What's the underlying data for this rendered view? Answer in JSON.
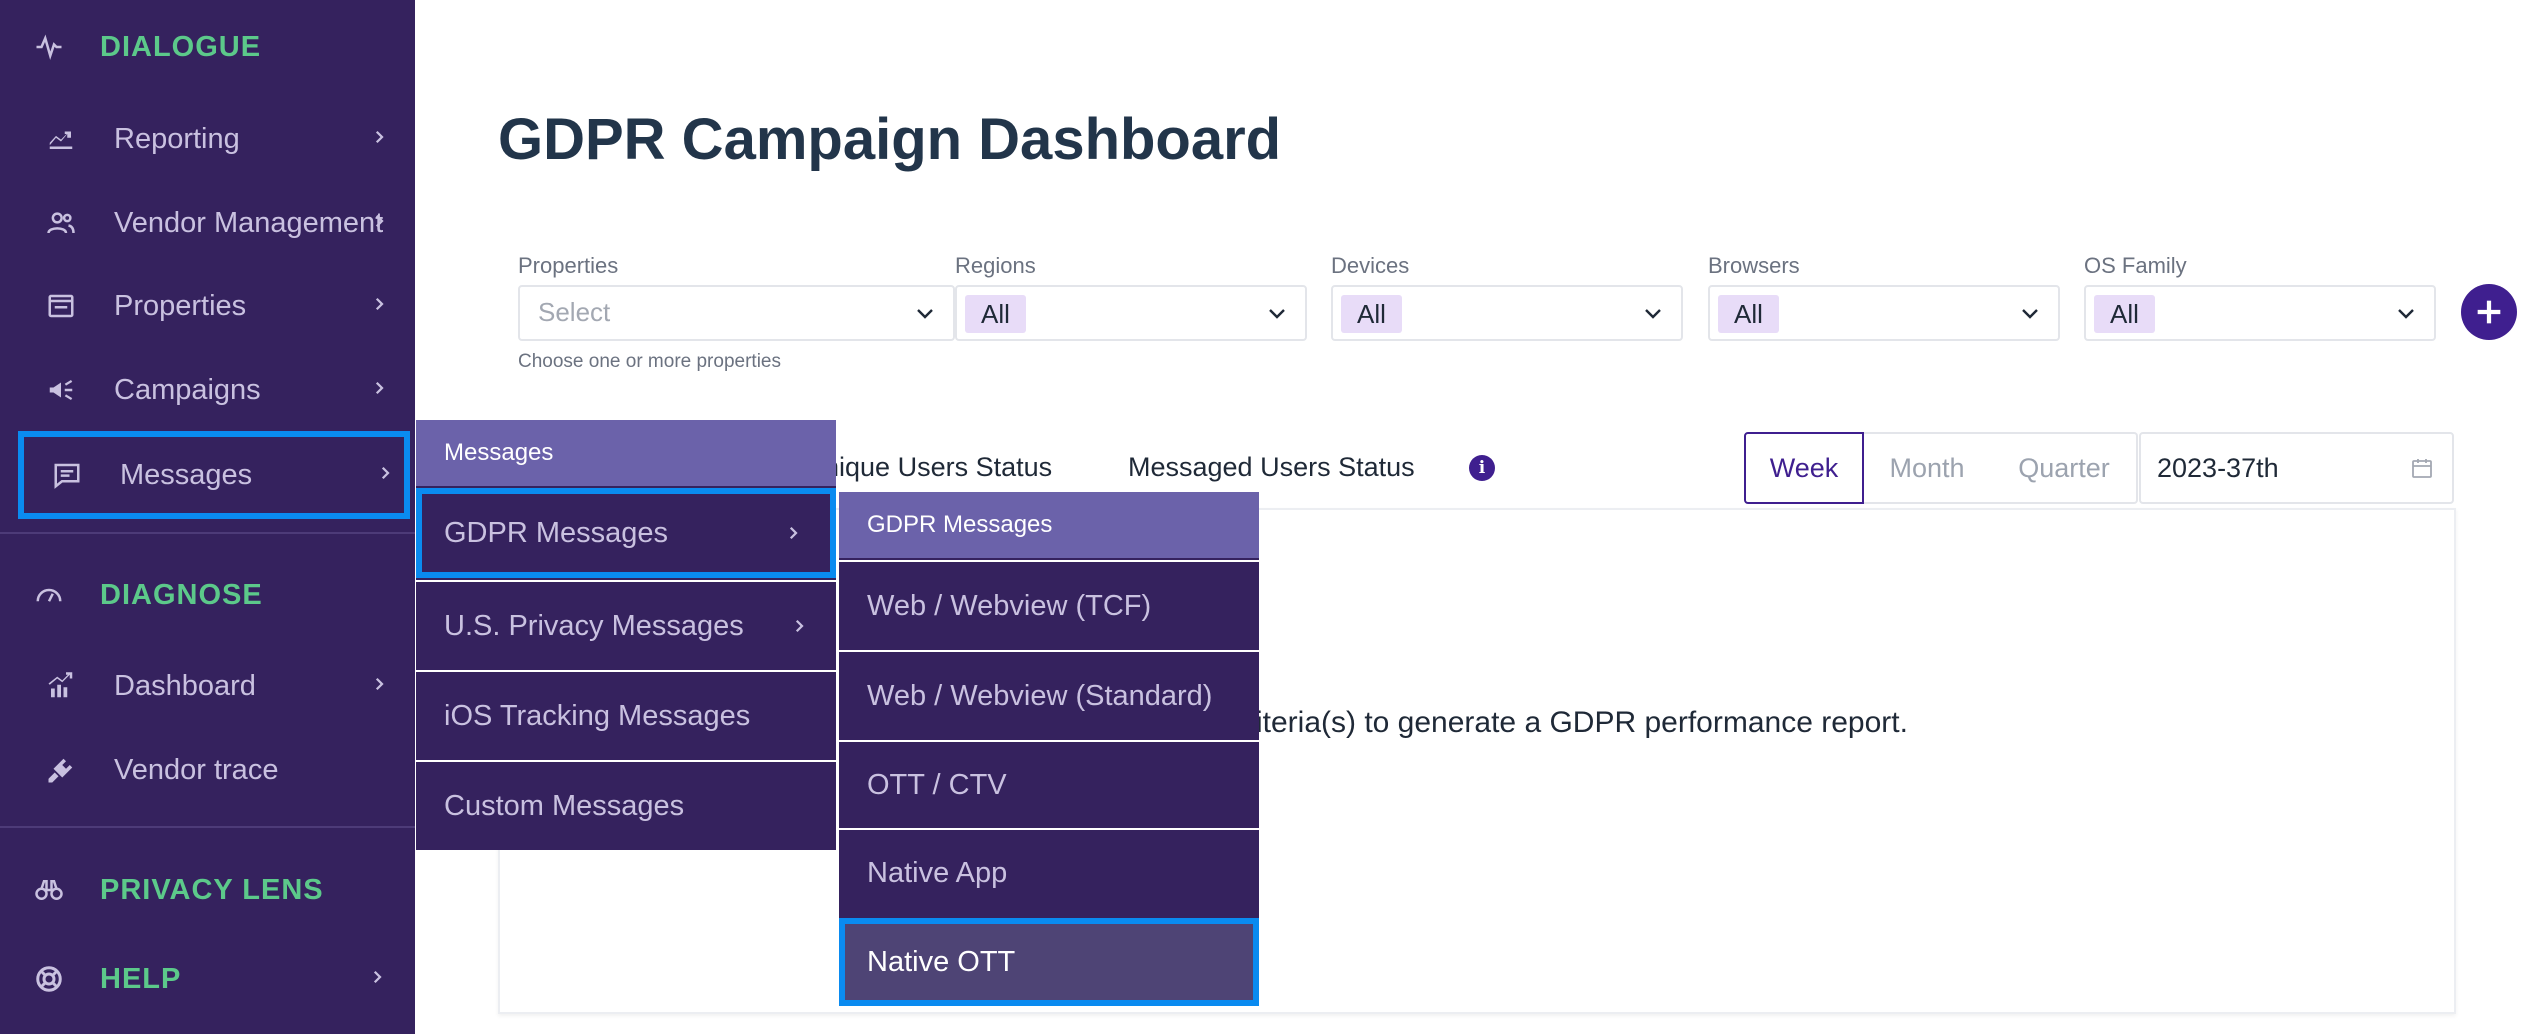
{
  "sidebar": {
    "sections": {
      "dialogue": "DIALOGUE",
      "diagnose": "DIAGNOSE",
      "privacy_lens": "PRIVACY LENS",
      "help": "HELP"
    },
    "items": {
      "reporting": "Reporting",
      "vendor_management": "Vendor Management",
      "properties": "Properties",
      "campaigns": "Campaigns",
      "messages": "Messages",
      "dashboard": "Dashboard",
      "vendor_trace": "Vendor trace"
    }
  },
  "main": {
    "title": "GDPR Campaign Dashboard",
    "filters": {
      "properties": {
        "label": "Properties",
        "placeholder": "Select",
        "help": "Choose one or more properties"
      },
      "regions": {
        "label": "Regions",
        "value": "All"
      },
      "devices": {
        "label": "Devices",
        "value": "All"
      },
      "browsers": {
        "label": "Browsers",
        "value": "All"
      },
      "os_family": {
        "label": "OS Family",
        "value": "All"
      }
    },
    "tabs": {
      "unique_users": "nique Users Status",
      "messaged_users": "Messaged Users Status"
    },
    "periods": {
      "week": "Week",
      "month": "Month",
      "quarter": "Quarter"
    },
    "date_value": "2023-37th",
    "report_message": "riteria(s) to generate a GDPR performance report."
  },
  "messages_menu": {
    "header": "Messages",
    "items": {
      "gdpr": "GDPR Messages",
      "us_privacy": "U.S. Privacy Messages",
      "ios_tracking": "iOS Tracking Messages",
      "custom": "Custom Messages"
    }
  },
  "gdpr_menu": {
    "header": "GDPR Messages",
    "items": {
      "web_tcf": "Web / Webview (TCF)",
      "web_standard": "Web / Webview (Standard)",
      "ott_ctv": "OTT / CTV",
      "native_app": "Native App",
      "native_ott": "Native OTT"
    }
  },
  "colors": {
    "sidebar_bg": "#35225e",
    "section_green": "#5cc98a",
    "menu_header": "#6b62aa",
    "selection_blue": "#0a8bf0",
    "accent_purple": "#3f1f8f"
  }
}
